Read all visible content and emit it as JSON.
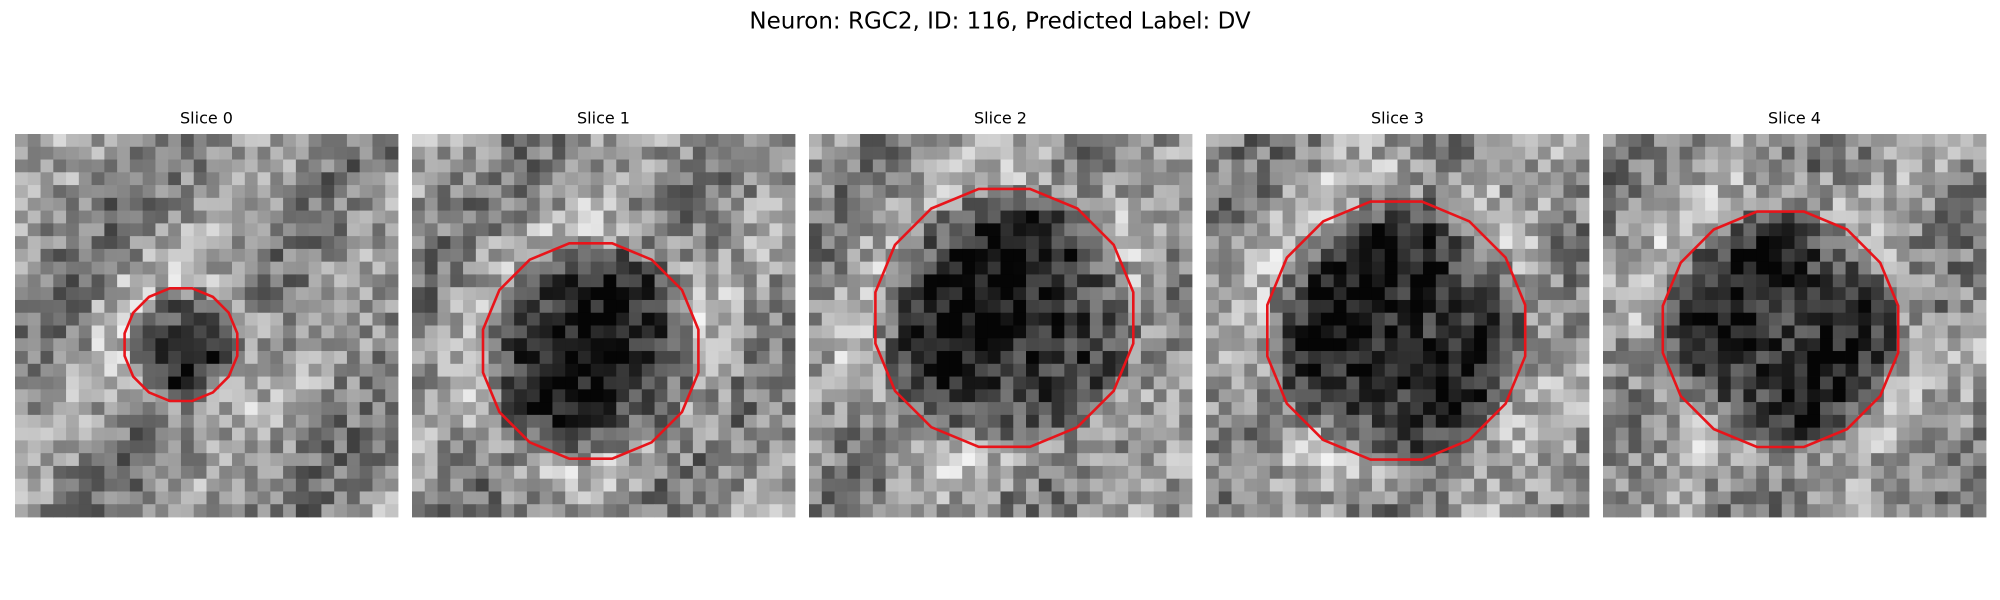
{
  "title": "Neuron: RGC2, ID: 116, Predicted Label: DV",
  "panels": [
    {
      "title": "Slice 0"
    },
    {
      "title": "Slice 1"
    },
    {
      "title": "Slice 2"
    },
    {
      "title": "Slice 3"
    },
    {
      "title": "Slice 4"
    }
  ]
}
